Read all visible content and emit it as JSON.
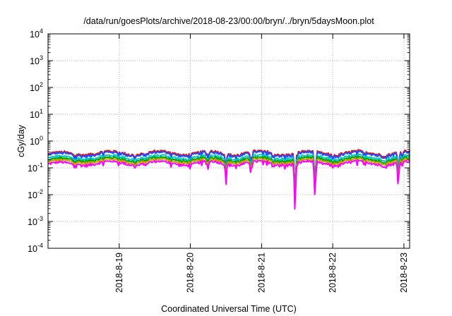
{
  "chart_data": {
    "type": "line",
    "title": "/data/run/goesPlots/archive/2018-08-23/00:00/bryn/../bryn/5daysMoon.plot",
    "xlabel": "Coordinated Universal Time (UTC)",
    "ylabel": "cGy/day",
    "yscale": "log",
    "ylim": [
      0.0001,
      10000
    ],
    "xlim": [
      0,
      5.08
    ],
    "x_ticks": [
      {
        "value": 1,
        "label": "2018-8-19"
      },
      {
        "value": 2,
        "label": "2018-8-20"
      },
      {
        "value": 3,
        "label": "2018-8-21"
      },
      {
        "value": 4,
        "label": "2018-8-22"
      },
      {
        "value": 5,
        "label": "2018-8-23"
      }
    ],
    "y_ticks": [
      {
        "value": 0.0001,
        "base": "10",
        "exp": "-4"
      },
      {
        "value": 0.001,
        "base": "10",
        "exp": "-3"
      },
      {
        "value": 0.01,
        "base": "10",
        "exp": "-2"
      },
      {
        "value": 0.1,
        "base": "10",
        "exp": "-1"
      },
      {
        "value": 1,
        "base": "10",
        "exp": "0"
      },
      {
        "value": 10,
        "base": "10",
        "exp": "1"
      },
      {
        "value": 100,
        "base": "10",
        "exp": "2"
      },
      {
        "value": 1000,
        "base": "10",
        "exp": "3"
      },
      {
        "value": 10000,
        "base": "10",
        "exp": "4"
      }
    ],
    "grid": true,
    "series": [
      {
        "color": "#ff0000",
        "base": 0.36
      },
      {
        "color": "#1e50ff",
        "base": 0.33
      },
      {
        "color": "#00c8c8",
        "base": 0.25
      },
      {
        "color": "#00a000",
        "base": 0.21
      },
      {
        "color": "#c8a000",
        "base": 0.18
      },
      {
        "color": "#ff00ff",
        "base": 0.15
      }
    ],
    "dips": [
      {
        "x": 2.25,
        "min": 0.07
      },
      {
        "x": 2.5,
        "min": 0.032
      },
      {
        "x": 2.85,
        "min": 0.07
      },
      {
        "x": 3.47,
        "min": 0.0014
      },
      {
        "x": 3.75,
        "min": 0.004
      },
      {
        "x": 4.92,
        "min": 0.017
      }
    ]
  }
}
